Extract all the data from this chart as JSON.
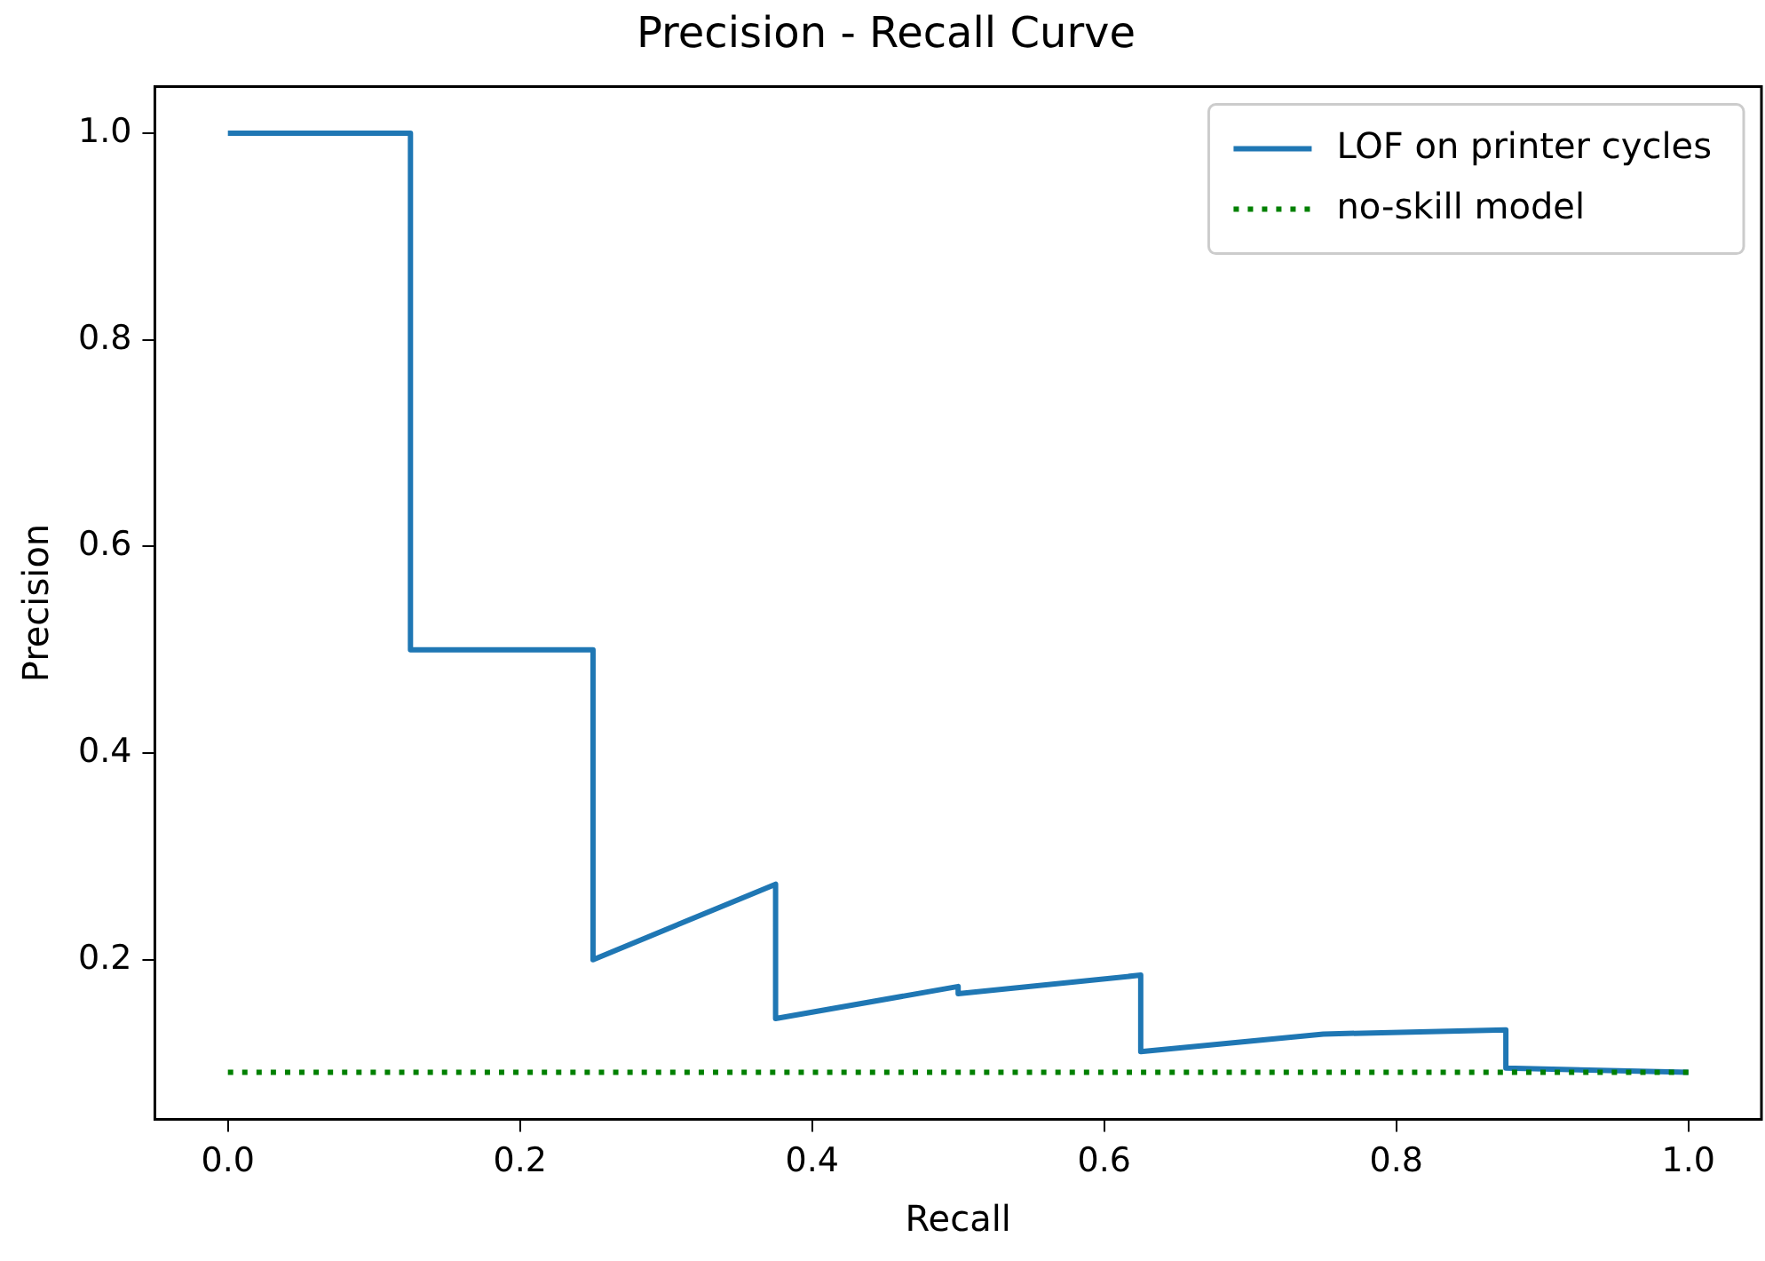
{
  "chart_data": {
    "type": "line",
    "title": "Precision - Recall Curve",
    "xlabel": "Recall",
    "ylabel": "Precision",
    "xlim": [
      -0.05,
      1.05
    ],
    "ylim": [
      0.0455,
      1.045
    ],
    "xticks": [
      {
        "value": 0,
        "label": "0.0"
      },
      0.2,
      0.4,
      0.6,
      0.8,
      {
        "value": 1,
        "label": "1.0"
      }
    ],
    "yticks": [
      0.2,
      0.4,
      0.6,
      0.8,
      {
        "value": 1,
        "label": "1.0"
      }
    ],
    "grid": false,
    "legend": "top right",
    "marker": "none",
    "series": [
      {
        "name": "LOF on printer cycles",
        "color": "#1f77b4",
        "line_style": "solid",
        "x": [
          0,
          0.125,
          0.125,
          0.25,
          0.25,
          0.375,
          0.375,
          0.5,
          0.5,
          0.625,
          0.625,
          0.75,
          0.875,
          0.875,
          1.0
        ],
        "values": [
          1.0,
          1.0,
          0.5,
          0.5,
          0.2,
          0.273,
          0.143,
          0.174,
          0.167,
          0.185,
          0.111,
          0.128,
          0.132,
          0.095,
          0.091
        ]
      },
      {
        "name": "no-skill model",
        "color": "#008000",
        "line_style": "dotted",
        "x": [
          0,
          1.0
        ],
        "values": [
          0.091,
          0.091
        ]
      }
    ]
  }
}
